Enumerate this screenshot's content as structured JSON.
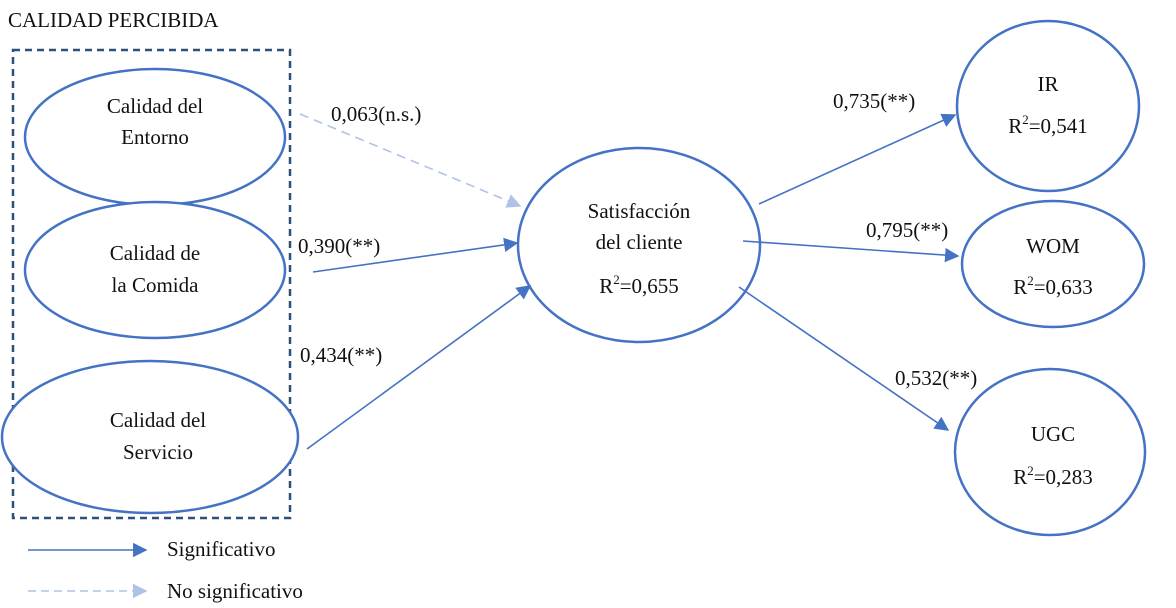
{
  "group": {
    "title": "CALIDAD PERCIBIDA"
  },
  "nodes": {
    "entorno": {
      "line1": "Calidad del",
      "line2": "Entorno"
    },
    "comida": {
      "line1": "Calidad de",
      "line2": "la Comida"
    },
    "servicio": {
      "line1": "Calidad del",
      "line2": "Servicio"
    },
    "satisfaccion": {
      "line1": "Satisfacción",
      "line2": "del cliente",
      "r2": "=0,655"
    },
    "ir": {
      "line1": "IR",
      "r2": "=0,541"
    },
    "wom": {
      "line1": "WOM",
      "r2": "=0,633"
    },
    "ugc": {
      "line1": "UGC",
      "r2": "=0,283"
    }
  },
  "r2_symbol": "R",
  "r2_exponent": "2",
  "paths": {
    "entorno_sat": "0,063(n.s.)",
    "comida_sat": "0,390(**)",
    "servicio_sat": "0,434(**)",
    "sat_ir": "0,735(**)",
    "sat_wom": "0,795(**)",
    "sat_ugc": "0,532(**)"
  },
  "legend": {
    "significant": "Significativo",
    "not_significant": "No significativo"
  },
  "colors": {
    "ellipse_stroke": "#4472c4",
    "arrow": "#4472c4",
    "arrow_ns": "#aec3e6",
    "group_border": "#2f4f7f"
  }
}
